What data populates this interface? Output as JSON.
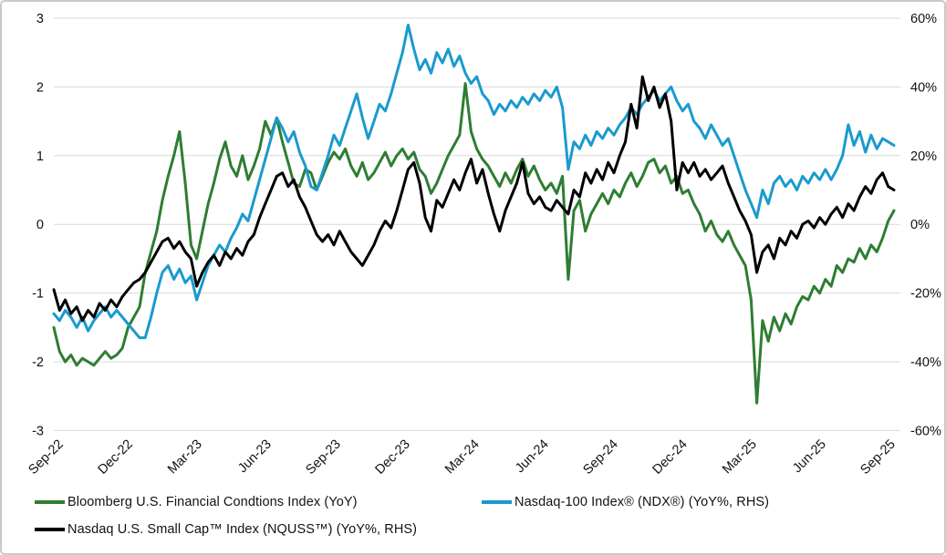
{
  "window": {
    "title": "Financial conditions vs Nasdaq indexes chart"
  },
  "colors": {
    "background": "#ffffff",
    "frame_border": "#c9c9c9",
    "gridline": "#d9d9d9",
    "text": "#111111",
    "green_series": "#2e7d32",
    "blue_series": "#1a9ace",
    "black_series": "#000000"
  },
  "chart_data": {
    "type": "line",
    "title": "",
    "xlabel": "",
    "ylabel_left": "",
    "ylabel_right": "",
    "grid": "horizontal-only",
    "legend_position": "bottom",
    "x_tick_labels": [
      "Sep-22",
      "Dec-22",
      "Mar-23",
      "Jun-23",
      "Sep-23",
      "Dec-23",
      "Mar-24",
      "Jun-24",
      "Sep-24",
      "Dec-24",
      "Mar-25",
      "Jun-25",
      "Sep-25"
    ],
    "x_note": "4 data points per month, Sep-2022 through Sep-2025",
    "left_axis": {
      "tick_labels": [
        "3",
        "2",
        "1",
        "0",
        "-1",
        "-2",
        "-3"
      ],
      "ticks": [
        3,
        2,
        1,
        0,
        -1,
        -2,
        -3
      ],
      "range": [
        -3,
        3
      ]
    },
    "right_axis": {
      "tick_labels": [
        "60%",
        "40%",
        "20%",
        "0%",
        "-20%",
        "-40%",
        "-60%"
      ],
      "ticks": [
        60,
        40,
        20,
        0,
        -20,
        -40,
        -60
      ],
      "range": [
        -60,
        60
      ]
    },
    "series": [
      {
        "name": "Bloomberg U.S. Financial Condtions Index (YoY)",
        "axis": "left",
        "unit": "index",
        "color": "#2e7d32",
        "values": [
          -1.5,
          -1.85,
          -2.0,
          -1.9,
          -2.05,
          -1.95,
          -2.0,
          -2.05,
          -1.95,
          -1.85,
          -1.95,
          -1.9,
          -1.8,
          -1.5,
          -1.35,
          -1.2,
          -0.7,
          -0.4,
          -0.1,
          0.35,
          0.7,
          1.0,
          1.35,
          0.6,
          -0.3,
          -0.5,
          -0.1,
          0.3,
          0.6,
          0.95,
          1.2,
          0.85,
          0.7,
          1.0,
          0.65,
          0.85,
          1.1,
          1.5,
          1.3,
          1.55,
          1.2,
          0.9,
          0.6,
          0.55,
          0.8,
          0.75,
          0.5,
          0.7,
          0.9,
          1.05,
          0.95,
          1.1,
          0.85,
          0.7,
          0.9,
          0.65,
          0.75,
          0.9,
          1.05,
          0.85,
          1.0,
          1.1,
          0.95,
          1.05,
          0.8,
          0.7,
          0.45,
          0.6,
          0.8,
          1.0,
          1.15,
          1.3,
          2.05,
          1.35,
          1.1,
          0.95,
          0.85,
          0.7,
          0.55,
          0.75,
          0.6,
          0.8,
          0.95,
          0.7,
          0.85,
          0.65,
          0.5,
          0.6,
          0.45,
          0.7,
          -0.8,
          0.2,
          0.35,
          -0.1,
          0.15,
          0.3,
          0.45,
          0.3,
          0.5,
          0.4,
          0.6,
          0.75,
          0.55,
          0.7,
          0.9,
          0.95,
          0.75,
          0.85,
          0.6,
          0.7,
          0.45,
          0.5,
          0.3,
          0.15,
          -0.1,
          0.05,
          -0.15,
          -0.25,
          -0.1,
          -0.3,
          -0.45,
          -0.6,
          -1.1,
          -2.6,
          -1.4,
          -1.7,
          -1.35,
          -1.55,
          -1.3,
          -1.45,
          -1.2,
          -1.05,
          -1.1,
          -0.9,
          -1.0,
          -0.8,
          -0.9,
          -0.6,
          -0.7,
          -0.5,
          -0.55,
          -0.35,
          -0.5,
          -0.3,
          -0.4,
          -0.2,
          0.05,
          0.2
        ]
      },
      {
        "name": "Nasdaq-100 Index® (NDX®) (YoY%, RHS)",
        "axis": "right",
        "unit": "%",
        "color": "#1a9ace",
        "values": [
          -26,
          -28,
          -25,
          -27,
          -30,
          -27,
          -31,
          -28,
          -26,
          -24,
          -27,
          -25,
          -27,
          -29,
          -31,
          -33,
          -33,
          -27,
          -20,
          -14,
          -12,
          -16,
          -13,
          -17,
          -15,
          -22,
          -17,
          -12,
          -9,
          -6,
          -8,
          -4,
          -1,
          3,
          1,
          7,
          13,
          19,
          25,
          31,
          28,
          24,
          27,
          21,
          17,
          11,
          10,
          15,
          20,
          26,
          23,
          28,
          33,
          38,
          31,
          25,
          30,
          35,
          33,
          38,
          44,
          50,
          58,
          51,
          45,
          48,
          44,
          50,
          47,
          51,
          46,
          49,
          44,
          41,
          43,
          38,
          36,
          32,
          35,
          33,
          36,
          34,
          37,
          35,
          38,
          36,
          39,
          37,
          40,
          34,
          16,
          24,
          22,
          26,
          23,
          27,
          25,
          28,
          26,
          29,
          31,
          34,
          32,
          35,
          37,
          39,
          36,
          38,
          40,
          36,
          33,
          35,
          30,
          28,
          25,
          29,
          26,
          23,
          25,
          20,
          15,
          10,
          6,
          2,
          10,
          6,
          12,
          14,
          11,
          13,
          10,
          14,
          12,
          15,
          13,
          16,
          13,
          16,
          20,
          29,
          23,
          27,
          21,
          26,
          22,
          25,
          24,
          23
        ]
      },
      {
        "name": "Nasdaq U.S. Small Cap™ Index (NQUSS™) (YoY%, RHS)",
        "axis": "right",
        "unit": "%",
        "color": "#000000",
        "values": [
          -19,
          -25,
          -22,
          -26,
          -24,
          -28,
          -25,
          -27,
          -23,
          -25,
          -22,
          -24,
          -21,
          -19,
          -17,
          -16,
          -14,
          -11,
          -8,
          -5,
          -4,
          -7,
          -5,
          -8,
          -10,
          -18,
          -14,
          -11,
          -9,
          -12,
          -8,
          -10,
          -7,
          -9,
          -5,
          -3,
          2,
          6,
          10,
          14,
          15,
          11,
          13,
          8,
          5,
          1,
          -3,
          -5,
          -3,
          -6,
          -2,
          -5,
          -8,
          -10,
          -12,
          -9,
          -6,
          -2,
          1,
          -1,
          4,
          10,
          16,
          18,
          12,
          2,
          -2,
          7,
          5,
          9,
          13,
          10,
          15,
          19,
          12,
          16,
          9,
          3,
          -2,
          4,
          8,
          12,
          18,
          9,
          6,
          8,
          5,
          4,
          7,
          5,
          3,
          10,
          8,
          15,
          12,
          16,
          13,
          18,
          15,
          20,
          24,
          35,
          28,
          43,
          36,
          40,
          34,
          38,
          30,
          10,
          18,
          15,
          18,
          14,
          16,
          13,
          15,
          17,
          12,
          8,
          4,
          1,
          -3,
          -14,
          -8,
          -6,
          -10,
          -4,
          -6,
          -2,
          -4,
          0,
          1,
          -1,
          2,
          0,
          3,
          5,
          2,
          6,
          4,
          8,
          11,
          9,
          13,
          15,
          11,
          10
        ]
      }
    ]
  },
  "legend": {
    "items": [
      {
        "label": "Bloomberg U.S. Financial Condtions Index (YoY)"
      },
      {
        "label": "Nasdaq-100 Index® (NDX®) (YoY%, RHS)"
      },
      {
        "label": "Nasdaq U.S. Small Cap™ Index (NQUSS™) (YoY%, RHS)"
      }
    ]
  }
}
